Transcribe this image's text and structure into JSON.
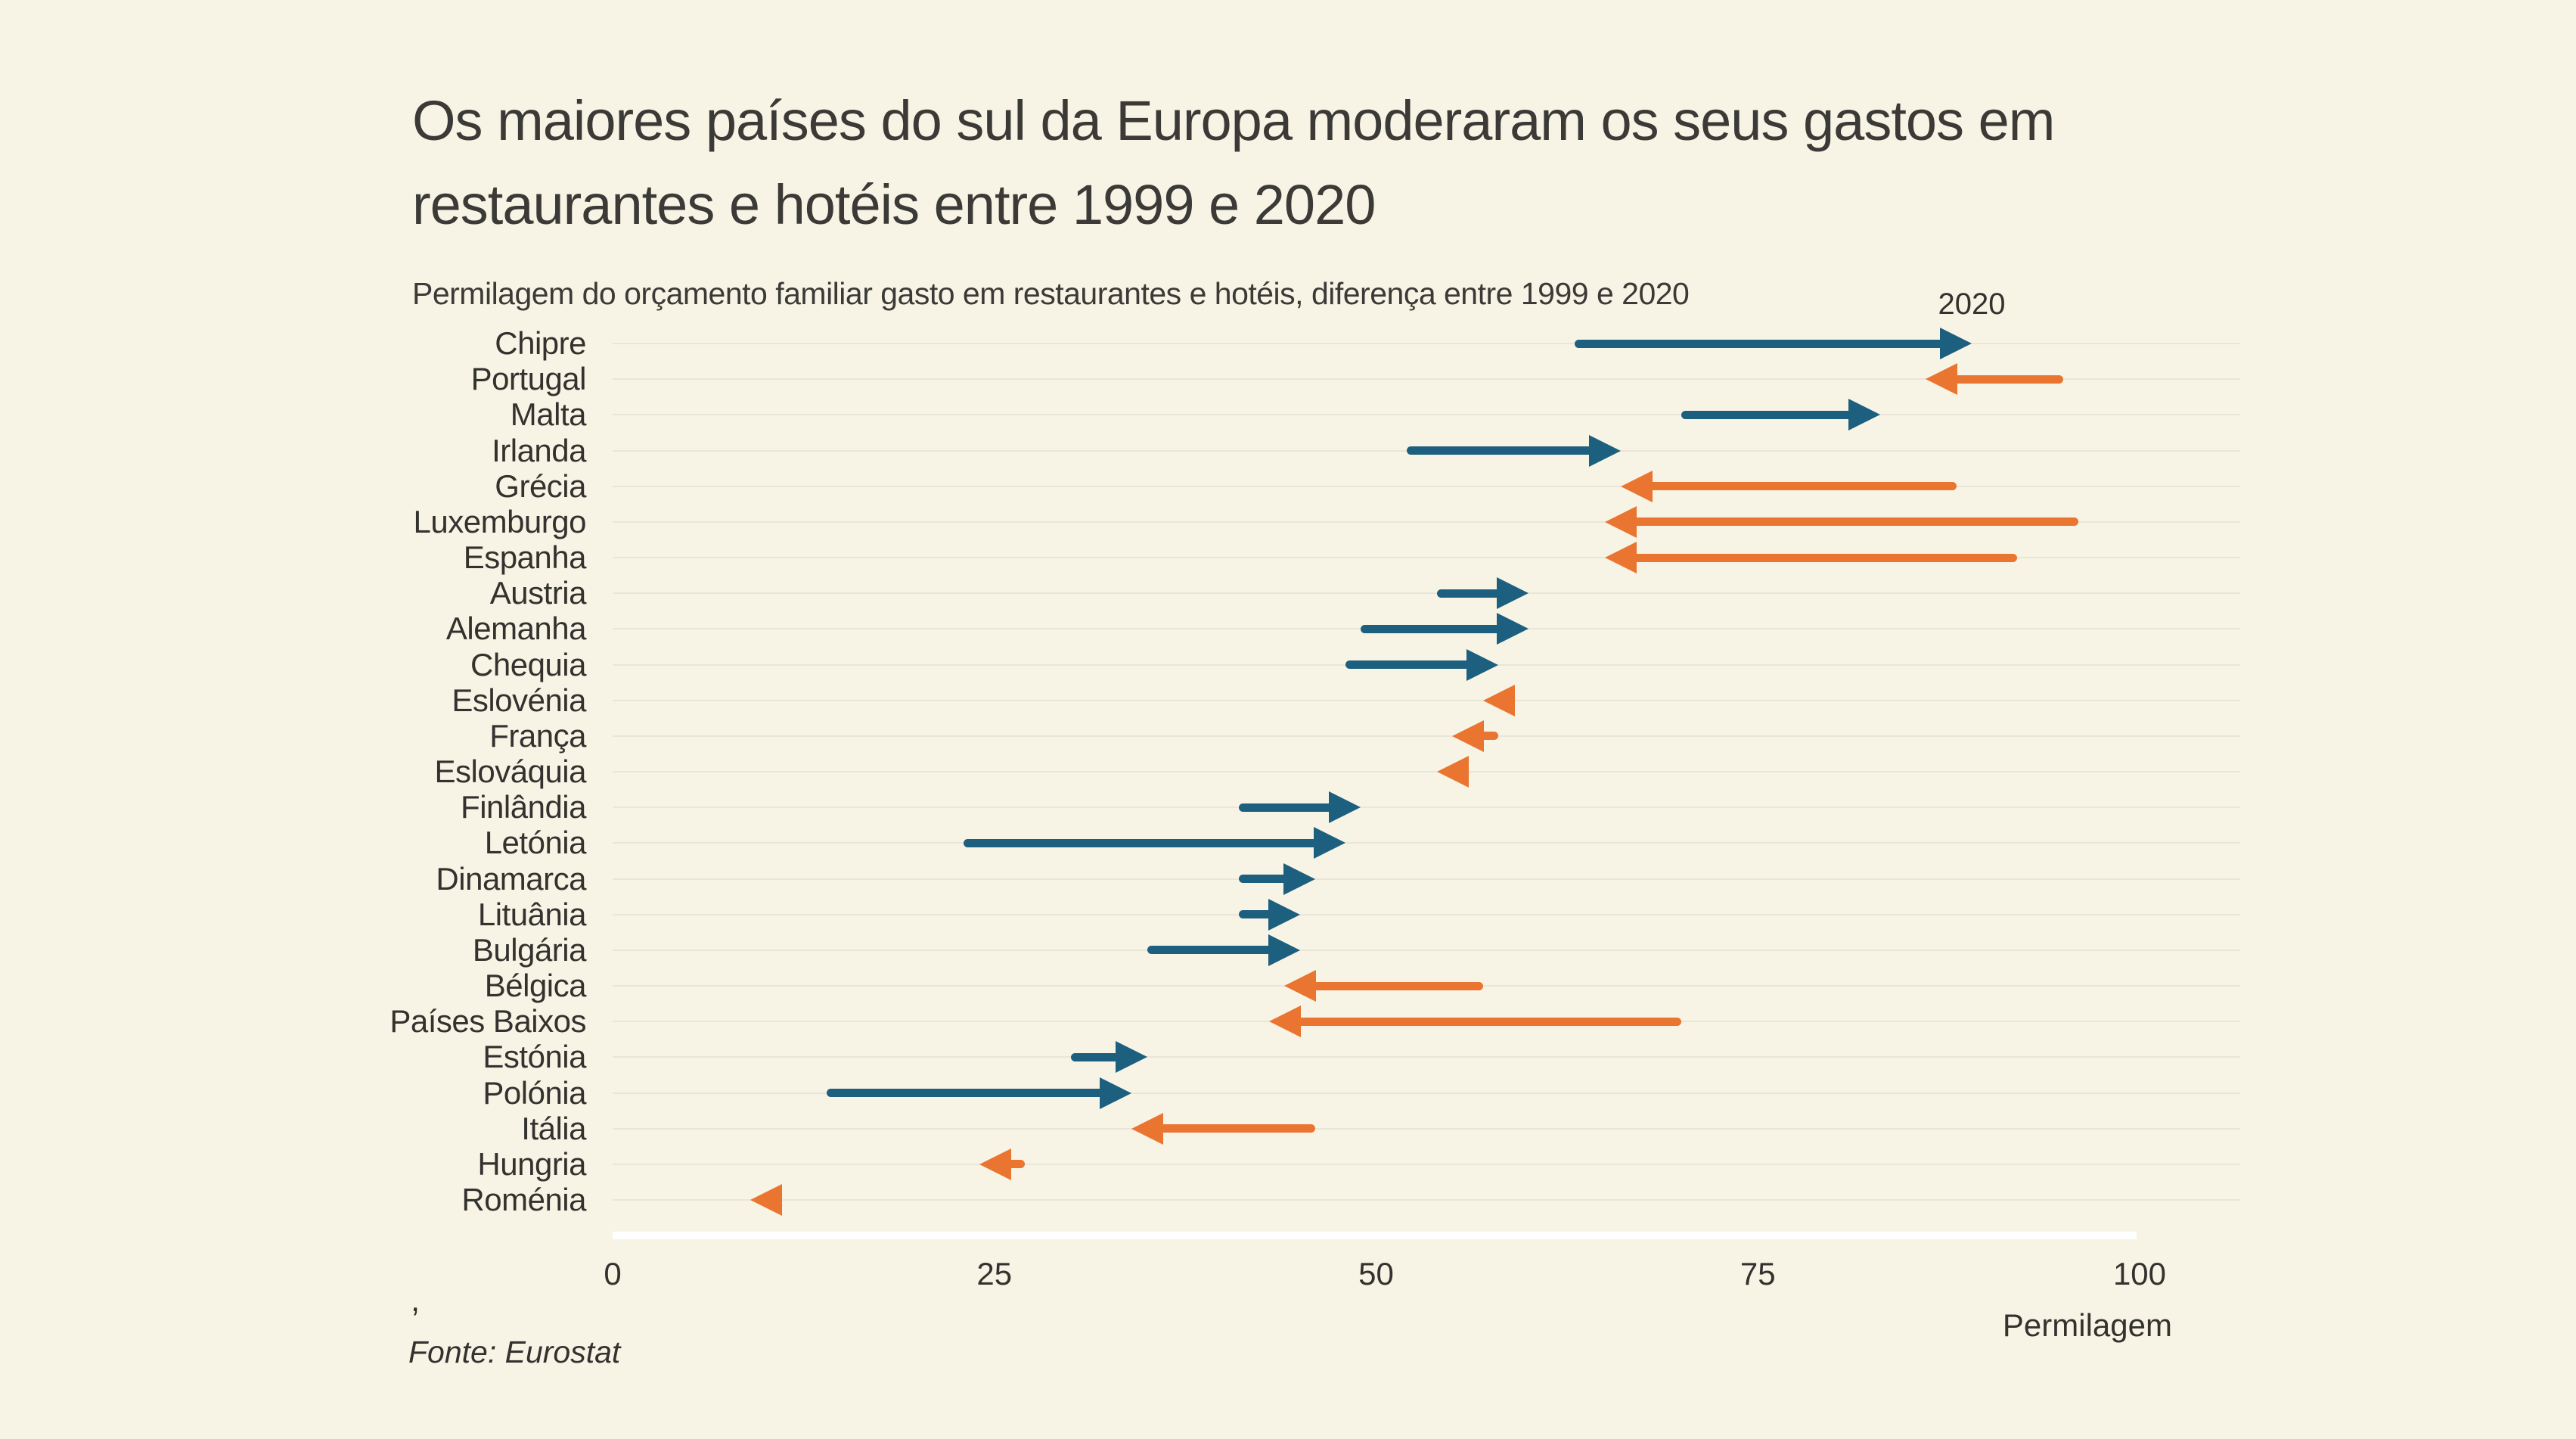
{
  "title": "Os maiores países do sul da Europa moderaram os seus gastos em\nrestaurantes e hotéis entre 1999 e 2020",
  "subtitle": "Permilagem do orçamento familiar gasto em restaurantes e hotéis, diferença entre 1999 e 2020",
  "annotation": "2020",
  "source_comma": ",",
  "source": "Fonte: Eurostat",
  "colors": {
    "background": "#f8f4e5",
    "increase": "#1d5f7e",
    "decrease": "#e97531",
    "gridline": "#e9e5d9",
    "baseline": "#ffffff",
    "text": "#33322f"
  },
  "chart_data": {
    "type": "arrow",
    "title": "Os maiores países do sul da Europa moderaram os seus gastos em restaurantes e hotéis entre 1999 e 2020",
    "subtitle": "Permilagem do orçamento familiar gasto em restaurantes e hotéis, diferença entre 1999 e 2020",
    "xlabel": "Permilagem",
    "xlim": [
      0,
      100
    ],
    "xticks": [
      0,
      25,
      50,
      75,
      100
    ],
    "grid": "horizontal",
    "annotation": {
      "text": "2020",
      "x": 89,
      "row": "Chipre",
      "meaning": "arrowhead marks 2020 value"
    },
    "categories": [
      "Chipre",
      "Portugal",
      "Malta",
      "Irlanda",
      "Grécia",
      "Luxemburgo",
      "Espanha",
      "Austria",
      "Alemanha",
      "Chequia",
      "Eslovénia",
      "França",
      "Eslováquia",
      "Finlândia",
      "Letónia",
      "Dinamarca",
      "Lituânia",
      "Bulgária",
      "Bélgica",
      "Países Baixos",
      "Estónia",
      "Polónia",
      "Itália",
      "Hungria",
      "Roménia"
    ],
    "series": [
      {
        "name": "1999",
        "values": [
          63,
          95,
          70,
          52,
          88,
          96,
          92,
          54,
          49,
          48,
          59,
          58,
          56,
          41,
          23,
          41,
          41,
          35,
          57,
          70,
          30,
          14,
          46,
          27,
          11
        ]
      },
      {
        "name": "2020",
        "values": [
          89,
          86,
          83,
          66,
          66,
          65,
          65,
          60,
          60,
          58,
          57,
          55,
          54,
          49,
          48,
          46,
          45,
          45,
          44,
          43,
          35,
          34,
          34,
          24,
          9
        ]
      }
    ],
    "source": "Fonte: Eurostat"
  }
}
